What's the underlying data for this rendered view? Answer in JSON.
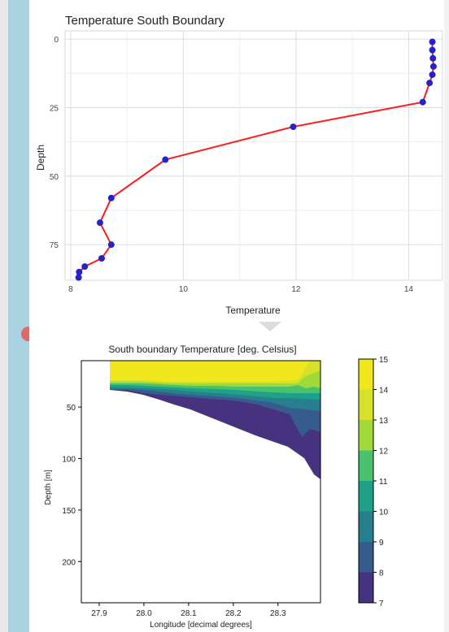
{
  "chart_data": [
    {
      "type": "line",
      "title": "Temperature South Boundary",
      "xlabel": "Temperature",
      "ylabel": "Depth",
      "xlim": [
        7.9,
        14.6
      ],
      "ylim": [
        88,
        -3
      ],
      "y_inverted": true,
      "xticks": [
        "8",
        "10",
        "12",
        "14"
      ],
      "yticks": [
        "0",
        "25",
        "50",
        "75"
      ],
      "grid": true,
      "series": [
        {
          "line_color": "#ff1a1a",
          "marker_color": "#2323c8",
          "points": [
            {
              "x": 14.42,
              "y": 1
            },
            {
              "x": 14.42,
              "y": 4
            },
            {
              "x": 14.43,
              "y": 7
            },
            {
              "x": 14.44,
              "y": 10
            },
            {
              "x": 14.42,
              "y": 13
            },
            {
              "x": 14.37,
              "y": 16
            },
            {
              "x": 14.25,
              "y": 23
            },
            {
              "x": 11.95,
              "y": 32
            },
            {
              "x": 9.68,
              "y": 44
            },
            {
              "x": 8.72,
              "y": 58
            },
            {
              "x": 8.52,
              "y": 67
            },
            {
              "x": 8.72,
              "y": 75
            },
            {
              "x": 8.55,
              "y": 80
            },
            {
              "x": 8.25,
              "y": 83
            },
            {
              "x": 8.15,
              "y": 85
            },
            {
              "x": 8.14,
              "y": 87
            }
          ]
        }
      ]
    },
    {
      "type": "heatmap",
      "title": "South boundary Temperature [deg. Celsius]",
      "xlabel": "Longitude [decimal degrees]",
      "ylabel": "Depth [m]",
      "xlim": [
        27.86,
        28.395
      ],
      "ylim": [
        240,
        5
      ],
      "xticks": [
        "27.9",
        "28.0",
        "28.1",
        "28.2",
        "28.3"
      ],
      "yticks": [
        "50",
        "100",
        "150",
        "200"
      ],
      "colorbar": {
        "ticks": [
          "7",
          "8",
          "9",
          "10",
          "11",
          "12",
          "13",
          "14",
          "15"
        ],
        "levels": [
          7,
          8,
          9,
          10,
          11,
          12,
          13,
          14,
          15
        ],
        "colors": [
          "#440154",
          "#46327e",
          "#365c8d",
          "#277f8e",
          "#1fa187",
          "#4ac16d",
          "#a0da39",
          "#d6e12a",
          "#f0e71c"
        ]
      }
    }
  ]
}
